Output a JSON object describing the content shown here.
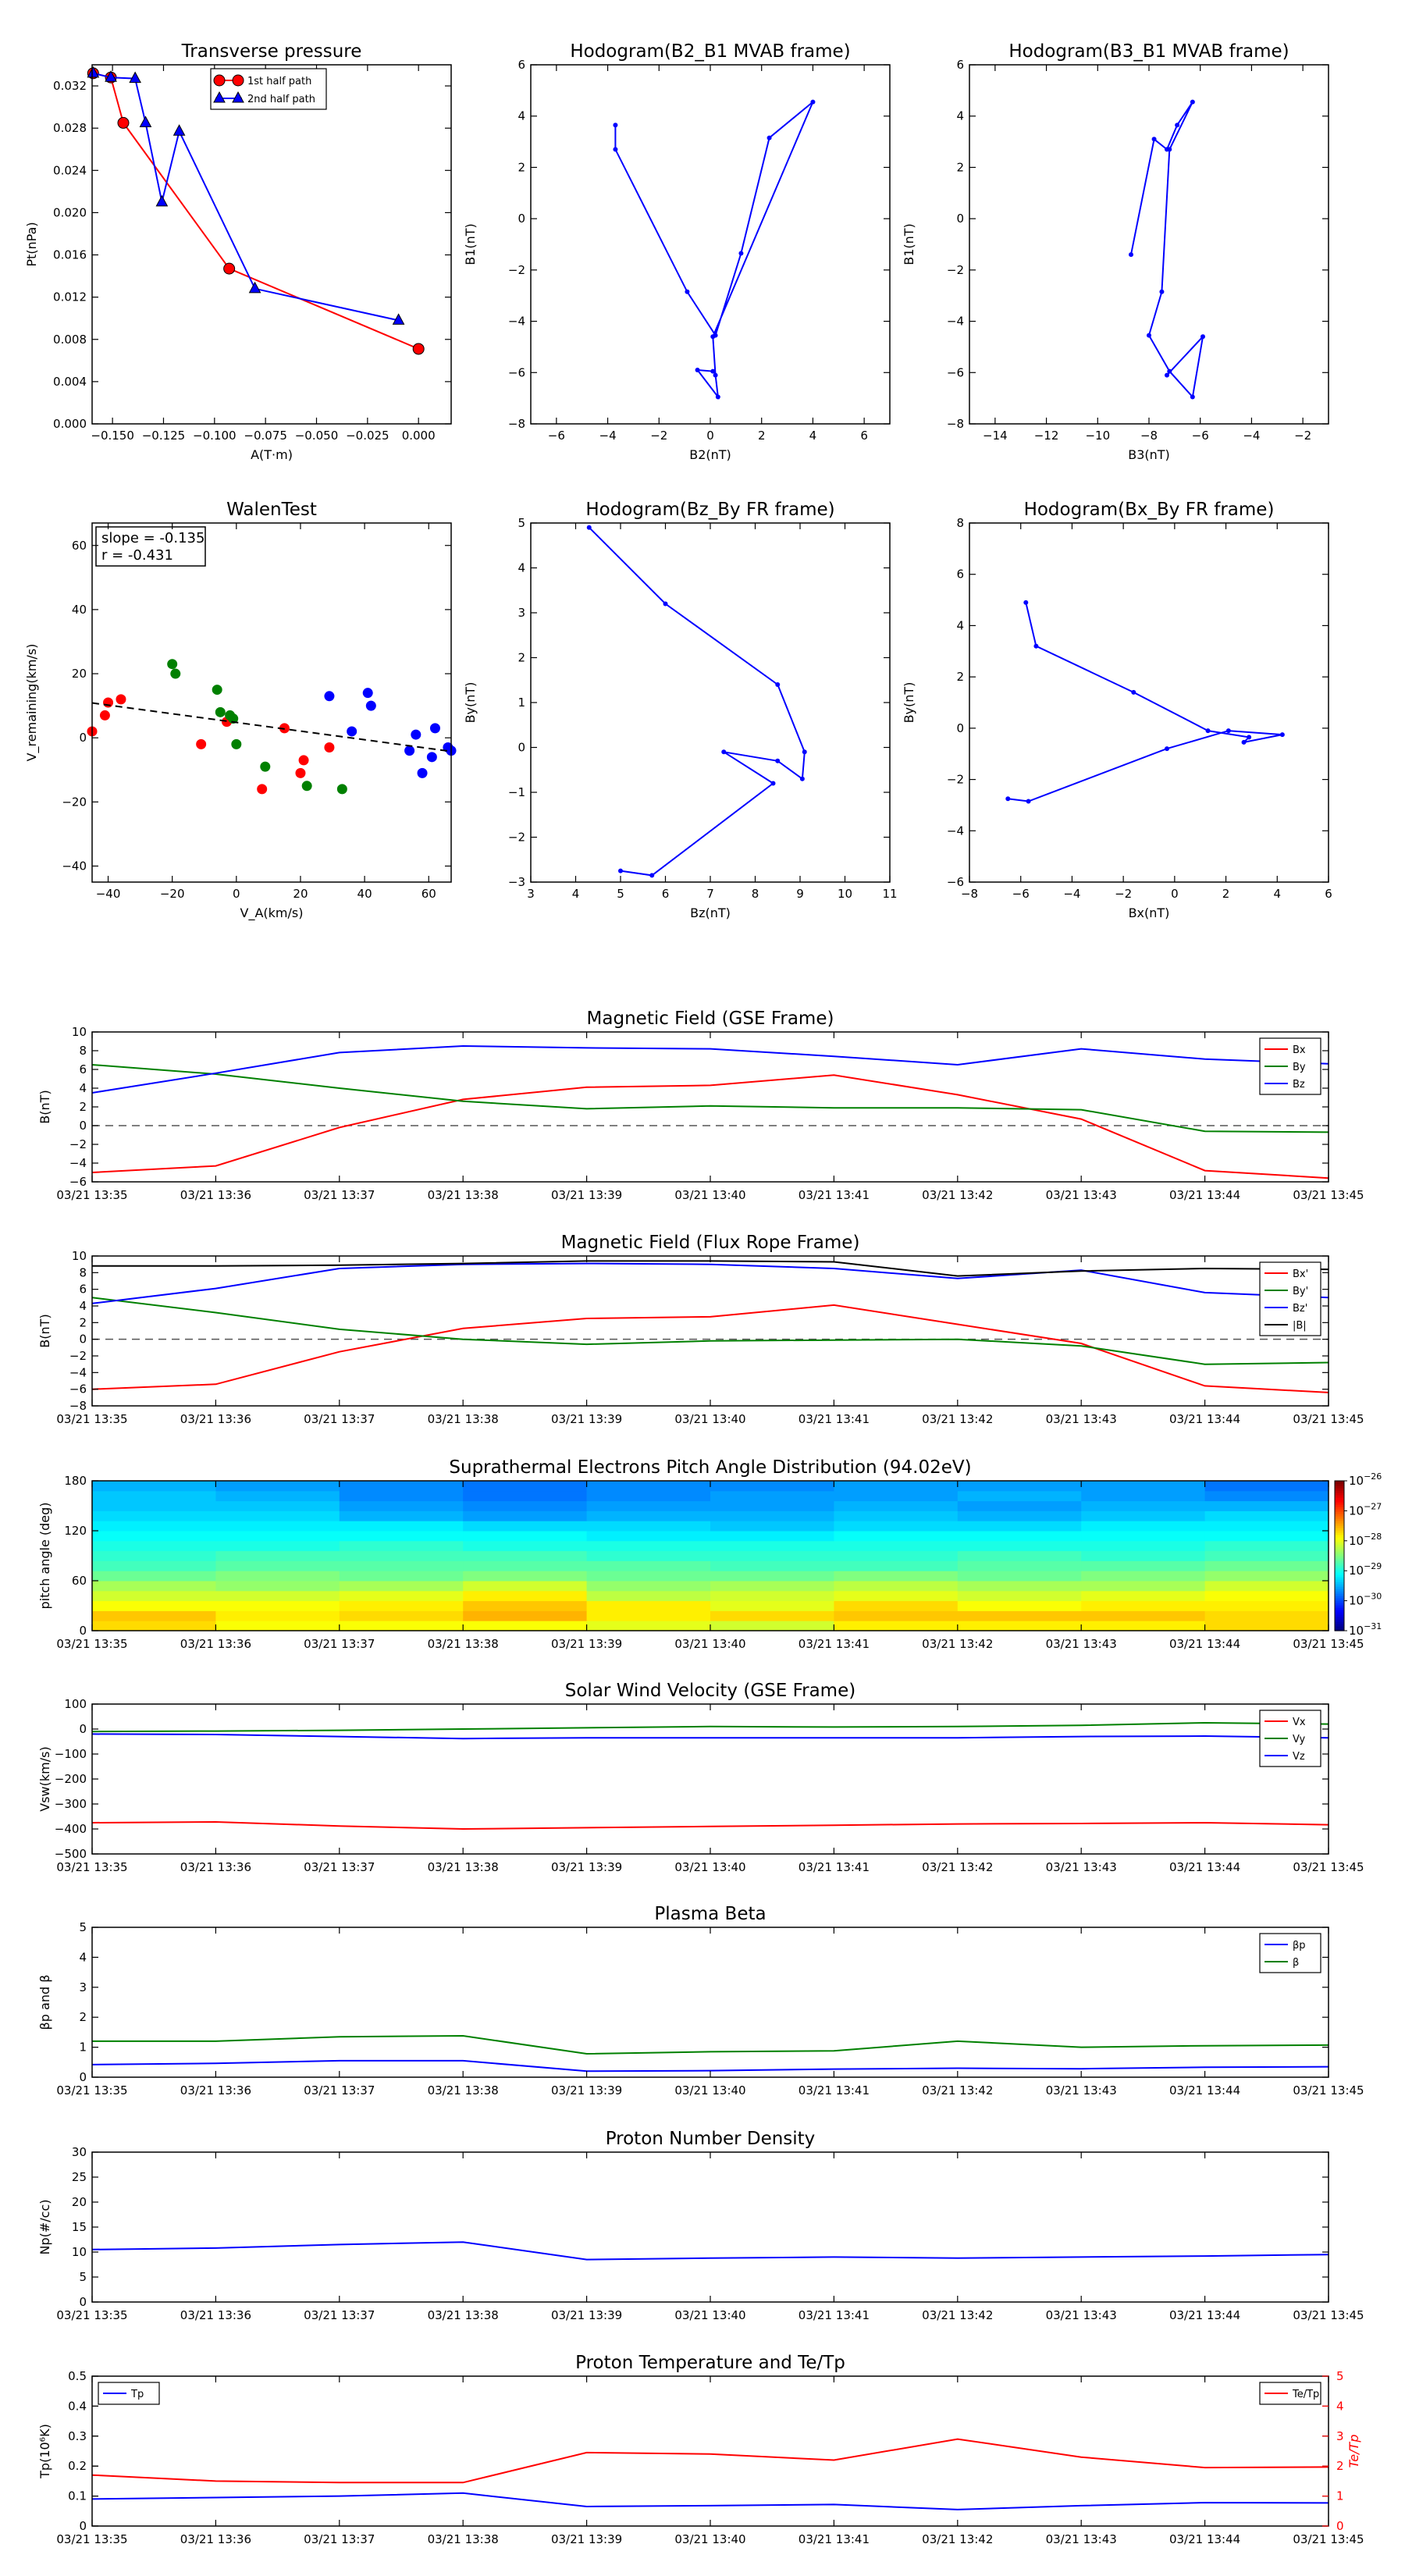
{
  "time_ticks": [
    "03/21 13:35",
    "03/21 13:36",
    "03/21 13:37",
    "03/21 13:38",
    "03/21 13:39",
    "03/21 13:40",
    "03/21 13:41",
    "03/21 13:42",
    "03/21 13:43",
    "03/21 13:44",
    "03/21 13:45"
  ],
  "colors": {
    "red": "#ff0000",
    "green": "#008000",
    "blue": "#0000ff",
    "black": "#000000",
    "gray": "#555555"
  },
  "chart_data": [
    {
      "id": "pt",
      "type": "line",
      "title": "Transverse pressure",
      "xlabel": "A(T·m)",
      "ylabel": "Pt(nPa)",
      "xlim": [
        -0.16,
        0.016
      ],
      "ylim": [
        0.0,
        0.034
      ],
      "xticks": [
        -0.15,
        -0.125,
        -0.1,
        -0.075,
        -0.05,
        -0.025,
        0.0
      ],
      "xtick_labels": [
        "−0.150",
        "−0.125",
        "−0.100",
        "−0.075",
        "−0.050",
        "−0.025",
        "0.000"
      ],
      "yticks": [
        0.0,
        0.004,
        0.008,
        0.012,
        0.016,
        0.02,
        0.024,
        0.028,
        0.032
      ],
      "ytick_labels": [
        "0.000",
        "0.004",
        "0.008",
        "0.012",
        "0.016",
        "0.020",
        "0.024",
        "0.028",
        "0.032"
      ],
      "legend": {
        "position": "top-right",
        "entries": [
          "1st half path",
          "2nd half path"
        ]
      },
      "series": [
        {
          "name": "1st half path",
          "color": "#ff0000",
          "marker": "circle",
          "x": [
            -0.1595,
            -0.1508,
            -0.1447,
            -0.0928,
            0.0
          ],
          "y": [
            0.0332,
            0.0328,
            0.0285,
            0.0147,
            0.0071
          ]
        },
        {
          "name": "2nd half path",
          "color": "#0000ff",
          "marker": "triangle",
          "x": [
            -0.1595,
            -0.1508,
            -0.1389,
            -0.1338,
            -0.1258,
            -0.1173,
            -0.0802,
            -0.0098
          ],
          "y": [
            0.0332,
            0.0328,
            0.0327,
            0.0285,
            0.021,
            0.0277,
            0.0128,
            0.0098
          ]
        }
      ]
    },
    {
      "id": "hodo1",
      "type": "line",
      "title": "Hodogram(B2_B1 MVAB frame)",
      "xlabel": "B2(nT)",
      "ylabel": "B1(nT)",
      "xlim": [
        -7,
        7
      ],
      "ylim": [
        -8,
        6
      ],
      "xticks": [
        -6,
        -4,
        -2,
        0,
        2,
        4,
        6
      ],
      "yticks": [
        -8,
        -6,
        -4,
        -2,
        0,
        2,
        4,
        6
      ],
      "series": [
        {
          "color": "#0000ff",
          "marker": "dot",
          "x": [
            -3.7,
            -3.7,
            -0.9,
            0.2,
            1.2,
            2.3,
            4.0,
            0.1,
            0.2,
            0.3,
            -0.5,
            0.1
          ],
          "y": [
            3.65,
            2.7,
            -2.85,
            -4.55,
            -1.35,
            3.15,
            4.55,
            -4.6,
            -6.1,
            -6.95,
            -5.9,
            -5.95
          ]
        }
      ]
    },
    {
      "id": "hodo2",
      "type": "line",
      "title": "Hodogram(B3_B1 MVAB frame)",
      "xlabel": "B3(nT)",
      "ylabel": "B1(nT)",
      "xlim": [
        -15,
        -1
      ],
      "ylim": [
        -8,
        6
      ],
      "xticks": [
        -14,
        -12,
        -10,
        -8,
        -6,
        -4,
        -2
      ],
      "yticks": [
        -8,
        -6,
        -4,
        -2,
        0,
        2,
        4,
        6
      ],
      "series": [
        {
          "color": "#0000ff",
          "marker": "dot",
          "x": [
            -8.7,
            -7.8,
            -7.3,
            -6.9,
            -6.3,
            -7.2,
            -7.5,
            -8.0,
            -7.2,
            -6.3,
            -5.9,
            -7.3
          ],
          "y": [
            -1.4,
            3.1,
            2.7,
            3.65,
            4.55,
            2.7,
            -2.85,
            -4.55,
            -5.95,
            -6.95,
            -4.6,
            -6.1
          ]
        }
      ]
    },
    {
      "id": "walen",
      "type": "scatter",
      "title": "WalenTest",
      "xlabel": "V_A(km/s)",
      "ylabel": "V_remaining(km/s)",
      "xlim": [
        -45,
        67
      ],
      "ylim": [
        -45,
        67
      ],
      "xticks": [
        -40,
        -20,
        0,
        20,
        40,
        60
      ],
      "yticks": [
        -40,
        -20,
        0,
        20,
        40,
        60
      ],
      "annotation": [
        "slope = -0.135",
        "r = -0.431"
      ],
      "fit": {
        "slope": -0.135,
        "intercept": 4.8,
        "color": "#000000",
        "style": "dashed"
      },
      "series": [
        {
          "color": "#ff0000",
          "x": [
            -45,
            -41,
            -40,
            -36,
            -11,
            -3,
            15,
            8,
            20,
            21,
            29
          ],
          "y": [
            2,
            7,
            11,
            12,
            -2,
            5,
            3,
            -16,
            -11,
            -7,
            -3
          ]
        },
        {
          "color": "#008000",
          "x": [
            -20,
            -19,
            -6,
            -5,
            -2,
            -1,
            0,
            9,
            22,
            33
          ],
          "y": [
            23,
            20,
            15,
            8,
            7,
            6,
            -2,
            -9,
            -15,
            -16
          ]
        },
        {
          "color": "#0000ff",
          "x": [
            29,
            36,
            41,
            42,
            54,
            56,
            58,
            61,
            62,
            66,
            67
          ],
          "y": [
            13,
            2,
            14,
            10,
            -4,
            1,
            -11,
            -6,
            3,
            -3,
            -4
          ]
        }
      ]
    },
    {
      "id": "hodo3",
      "type": "line",
      "title": "Hodogram(Bz_By FR frame)",
      "xlabel": "Bz(nT)",
      "ylabel": "By(nT)",
      "xlim": [
        3,
        11
      ],
      "ylim": [
        -3,
        5
      ],
      "xticks": [
        3,
        4,
        5,
        6,
        7,
        8,
        9,
        10,
        11
      ],
      "yticks": [
        -3,
        -2,
        -1,
        0,
        1,
        2,
        3,
        4,
        5
      ],
      "series": [
        {
          "color": "#0000ff",
          "marker": "dot",
          "x": [
            4.3,
            6.0,
            8.5,
            9.1,
            9.05,
            8.5,
            7.3,
            8.4,
            5.7,
            5.0
          ],
          "y": [
            4.9,
            3.2,
            1.4,
            -0.1,
            -0.7,
            -0.3,
            -0.1,
            -0.8,
            -2.85,
            -2.75
          ]
        }
      ]
    },
    {
      "id": "hodo4",
      "type": "line",
      "title": "Hodogram(Bx_By FR frame)",
      "xlabel": "Bx(nT)",
      "ylabel": "By(nT)",
      "xlim": [
        -8,
        6
      ],
      "ylim": [
        -6,
        8
      ],
      "xticks": [
        -8,
        -6,
        -4,
        -2,
        0,
        2,
        4,
        6
      ],
      "yticks": [
        -6,
        -4,
        -2,
        0,
        2,
        4,
        6,
        8
      ],
      "series": [
        {
          "color": "#0000ff",
          "marker": "dot",
          "x": [
            -5.8,
            -5.4,
            -1.6,
            1.3,
            2.9,
            2.7,
            4.2,
            2.1,
            -0.3,
            -5.7,
            -6.5
          ],
          "y": [
            4.9,
            3.2,
            1.4,
            -0.1,
            -0.35,
            -0.55,
            -0.25,
            -0.1,
            -0.8,
            -2.85,
            -2.75
          ]
        }
      ]
    },
    {
      "id": "bgse",
      "type": "line",
      "title": "Magnetic Field (GSE Frame)",
      "ylabel": "B(nT)",
      "ylim": [
        -6,
        10
      ],
      "yticks": [
        -6,
        -4,
        -2,
        0,
        2,
        4,
        6,
        8,
        10
      ],
      "zero_line": true,
      "legend": {
        "position": "top-right",
        "entries": [
          "Bx",
          "By",
          "Bz"
        ]
      },
      "series": [
        {
          "name": "Bx",
          "color": "#ff0000",
          "values": [
            -5.0,
            -4.3,
            -0.2,
            2.8,
            4.1,
            4.3,
            5.4,
            3.3,
            0.7,
            -4.8,
            -5.6
          ]
        },
        {
          "name": "By",
          "color": "#008000",
          "values": [
            6.5,
            5.5,
            4.0,
            2.6,
            1.8,
            2.1,
            1.9,
            1.9,
            1.7,
            -0.6,
            -0.7
          ]
        },
        {
          "name": "Bz",
          "color": "#0000ff",
          "values": [
            3.5,
            5.6,
            7.8,
            8.5,
            8.3,
            8.2,
            7.4,
            6.5,
            8.2,
            7.1,
            6.6
          ]
        }
      ]
    },
    {
      "id": "bfr",
      "type": "line",
      "title": "Magnetic Field (Flux Rope Frame)",
      "ylabel": "B(nT)",
      "ylim": [
        -8,
        10
      ],
      "yticks": [
        -8,
        -6,
        -4,
        -2,
        0,
        2,
        4,
        6,
        8,
        10
      ],
      "zero_line": true,
      "legend": {
        "position": "top-right",
        "entries": [
          "Bx'",
          "By'",
          "Bz'",
          "|B|"
        ]
      },
      "series": [
        {
          "name": "Bx'",
          "color": "#ff0000",
          "values": [
            -6.0,
            -5.4,
            -1.5,
            1.3,
            2.5,
            2.7,
            4.1,
            1.8,
            -0.5,
            -5.6,
            -6.4
          ]
        },
        {
          "name": "By'",
          "color": "#008000",
          "values": [
            5.0,
            3.2,
            1.2,
            0.0,
            -0.6,
            -0.2,
            -0.1,
            0.0,
            -0.8,
            -3.0,
            -2.8
          ]
        },
        {
          "name": "Bz'",
          "color": "#0000ff",
          "values": [
            4.3,
            6.1,
            8.5,
            9.0,
            9.1,
            9.0,
            8.5,
            7.3,
            8.3,
            5.6,
            5.0
          ]
        },
        {
          "name": "|B|",
          "color": "#000000",
          "values": [
            8.8,
            8.8,
            8.9,
            9.1,
            9.4,
            9.4,
            9.3,
            7.6,
            8.2,
            8.5,
            8.4
          ]
        }
      ]
    },
    {
      "id": "pad",
      "type": "heatmap",
      "title": "Suprathermal Electrons Pitch Angle Distribution (94.02eV)",
      "ylabel": "pitch angle (deg)",
      "ylim": [
        0,
        180
      ],
      "yticks": [
        0,
        60,
        120,
        180
      ],
      "colorbar": {
        "min_exp": -31,
        "max_exp": -26,
        "label_base": "10",
        "tick_exps": [
          -31,
          -30,
          -29,
          -28,
          -27,
          -26
        ]
      },
      "bin_edges": [
        0,
        12,
        24,
        36,
        48,
        60,
        72,
        84,
        96,
        108,
        120,
        132,
        144,
        156,
        168,
        180
      ],
      "time_bins": 10,
      "log_values": [
        [
          -27.7,
          -27.9,
          -27.9,
          -27.9,
          -28.0,
          -28.1,
          -27.8,
          -27.8,
          -27.8,
          -27.7
        ],
        [
          -27.6,
          -27.8,
          -27.7,
          -27.5,
          -27.8,
          -27.7,
          -27.6,
          -27.6,
          -27.6,
          -27.7
        ],
        [
          -27.9,
          -27.9,
          -27.8,
          -27.6,
          -27.8,
          -28.0,
          -27.7,
          -27.9,
          -27.8,
          -27.8
        ],
        [
          -28.1,
          -28.1,
          -28.0,
          -27.8,
          -28.2,
          -28.1,
          -28.0,
          -28.1,
          -28.0,
          -27.9
        ],
        [
          -28.3,
          -28.4,
          -28.3,
          -28.1,
          -28.4,
          -28.3,
          -28.2,
          -28.3,
          -28.3,
          -28.1
        ],
        [
          -28.6,
          -28.5,
          -28.6,
          -28.5,
          -28.6,
          -28.6,
          -28.5,
          -28.6,
          -28.5,
          -28.4
        ],
        [
          -28.8,
          -28.7,
          -28.7,
          -28.7,
          -28.7,
          -28.8,
          -28.8,
          -28.7,
          -28.7,
          -28.6
        ],
        [
          -28.9,
          -28.8,
          -28.8,
          -28.8,
          -28.9,
          -28.9,
          -28.9,
          -28.8,
          -28.9,
          -28.8
        ],
        [
          -29.0,
          -29.0,
          -28.9,
          -29.0,
          -29.0,
          -29.0,
          -29.0,
          -29.0,
          -29.0,
          -28.9
        ],
        [
          -29.1,
          -29.1,
          -29.1,
          -29.1,
          -29.2,
          -29.2,
          -29.1,
          -29.1,
          -29.1,
          -29.1
        ],
        [
          -29.2,
          -29.2,
          -29.2,
          -29.3,
          -29.3,
          -29.4,
          -29.3,
          -29.3,
          -29.2,
          -29.2
        ],
        [
          -29.3,
          -29.3,
          -29.5,
          -29.6,
          -29.5,
          -29.5,
          -29.4,
          -29.5,
          -29.4,
          -29.3
        ],
        [
          -29.4,
          -29.4,
          -29.6,
          -29.7,
          -29.6,
          -29.6,
          -29.5,
          -29.6,
          -29.5,
          -29.5
        ],
        [
          -29.4,
          -29.5,
          -29.7,
          -29.8,
          -29.7,
          -29.6,
          -29.6,
          -29.5,
          -29.6,
          -29.7
        ],
        [
          -29.5,
          -29.6,
          -29.7,
          -29.8,
          -29.7,
          -29.7,
          -29.6,
          -29.6,
          -29.6,
          -29.8
        ]
      ]
    },
    {
      "id": "vsw",
      "type": "line",
      "title": "Solar Wind Velocity (GSE Frame)",
      "ylabel": "Vsw(km/s)",
      "ylim": [
        -500,
        100
      ],
      "yticks": [
        -500,
        -400,
        -300,
        -200,
        -100,
        0,
        100
      ],
      "legend": {
        "position": "top-right",
        "entries": [
          "Vx",
          "Vy",
          "Vz"
        ]
      },
      "series": [
        {
          "name": "Vx",
          "color": "#ff0000",
          "values": [
            -375,
            -372,
            -388,
            -400,
            -395,
            -390,
            -385,
            -380,
            -378,
            -375,
            -383
          ]
        },
        {
          "name": "Vy",
          "color": "#008000",
          "values": [
            -10,
            -8,
            -5,
            0,
            5,
            10,
            8,
            10,
            15,
            25,
            20
          ]
        },
        {
          "name": "Vz",
          "color": "#0000ff",
          "values": [
            -20,
            -22,
            -30,
            -38,
            -35,
            -35,
            -35,
            -35,
            -30,
            -28,
            -35
          ]
        }
      ]
    },
    {
      "id": "beta",
      "type": "line",
      "title": "Plasma Beta",
      "ylabel": "βp and β",
      "ylim": [
        0,
        5
      ],
      "yticks": [
        0,
        1,
        2,
        3,
        4,
        5
      ],
      "legend": {
        "position": "top-right",
        "entries": [
          "βp",
          "β"
        ]
      },
      "series": [
        {
          "name": "βp",
          "color": "#0000ff",
          "values": [
            0.42,
            0.46,
            0.55,
            0.55,
            0.2,
            0.22,
            0.27,
            0.3,
            0.28,
            0.33,
            0.35
          ]
        },
        {
          "name": "β",
          "color": "#008000",
          "values": [
            1.2,
            1.2,
            1.35,
            1.38,
            0.78,
            0.85,
            0.88,
            1.2,
            1.0,
            1.05,
            1.07
          ]
        }
      ]
    },
    {
      "id": "np",
      "type": "line",
      "title": "Proton Number Density",
      "ylabel": "Np(#/cc)",
      "ylim": [
        0,
        30
      ],
      "yticks": [
        0,
        5,
        10,
        15,
        20,
        25,
        30
      ],
      "series": [
        {
          "color": "#0000ff",
          "values": [
            10.5,
            10.8,
            11.5,
            12.0,
            8.5,
            8.8,
            9.0,
            8.8,
            9.0,
            9.2,
            9.5
          ]
        }
      ]
    },
    {
      "id": "tp",
      "type": "line",
      "title": "Proton Temperature and Te/Tp",
      "ylabel": "Tp(10⁶K)",
      "ylabel_right": "Te/Tp",
      "ylim": [
        0,
        0.5
      ],
      "yticks": [
        0,
        0.1,
        0.2,
        0.3,
        0.4,
        0.5
      ],
      "ylim_right": [
        0,
        5
      ],
      "yticks_right": [
        0,
        1,
        2,
        3,
        4,
        5
      ],
      "legend_left": {
        "position": "top-left",
        "entries": [
          "Tp"
        ]
      },
      "legend_right": {
        "position": "top-right",
        "entries": [
          "Te/Tp"
        ]
      },
      "series": [
        {
          "name": "Tp",
          "color": "#0000ff",
          "axis": "left",
          "values": [
            0.09,
            0.095,
            0.1,
            0.11,
            0.065,
            0.068,
            0.072,
            0.055,
            0.068,
            0.078,
            0.077
          ]
        },
        {
          "name": "Te/Tp",
          "color": "#ff0000",
          "axis": "right",
          "values": [
            1.7,
            1.5,
            1.45,
            1.45,
            2.45,
            2.4,
            2.2,
            2.9,
            2.3,
            1.95,
            1.97
          ]
        }
      ]
    }
  ]
}
